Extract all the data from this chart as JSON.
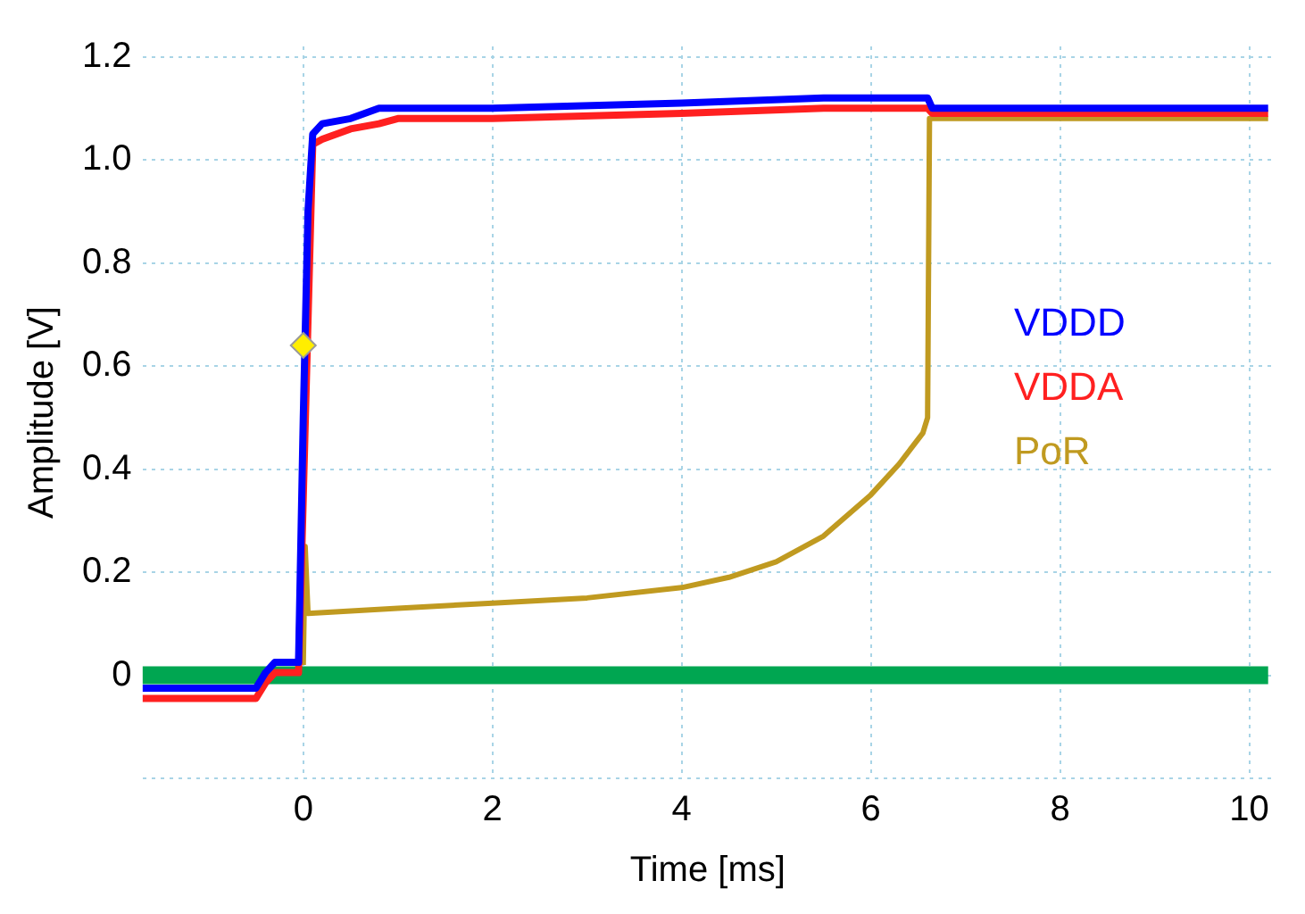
{
  "chart_data": {
    "type": "line",
    "xlabel": "Time [ms]",
    "ylabel": "Amplitude [V]",
    "xlim": [
      -1.7,
      10.25
    ],
    "ylim": [
      -0.2,
      1.22
    ],
    "xticks": [
      0,
      2,
      4,
      6,
      8,
      10
    ],
    "yticks": [
      {
        "value": -0.2,
        "label": null
      },
      0,
      0.2,
      0.4,
      0.6,
      0.8,
      {
        "value": 1,
        "label": "1.0"
      },
      1.2
    ],
    "grid": true,
    "legend": "right",
    "marker": "none",
    "line_style": "solid",
    "series": [
      {
        "color": "#00a651",
        "x": [
          -1.7,
          10.2
        ],
        "values": [
          0,
          0
        ]
      },
      {
        "name": "PoR",
        "color": "#c09a20",
        "x": [
          0,
          0.02,
          0.05,
          1,
          2,
          3,
          4,
          4.5,
          5,
          5.5,
          6,
          6.3,
          6.55,
          6.6,
          6.62,
          7,
          8,
          10.2
        ],
        "values": [
          0.02,
          0.25,
          0.12,
          0.13,
          0.14,
          0.15,
          0.17,
          0.19,
          0.22,
          0.27,
          0.35,
          0.41,
          0.47,
          0.5,
          1.08,
          1.08,
          1.08,
          1.08
        ]
      },
      {
        "name": "VDDA",
        "color": "#ff2020",
        "x": [
          -1.7,
          -0.5,
          -0.4,
          -0.3,
          -0.05,
          0,
          0.05,
          0.1,
          0.2,
          0.5,
          0.8,
          1,
          2,
          4,
          5.5,
          6.6,
          6.65,
          8,
          10.2
        ],
        "values": [
          -0.045,
          -0.045,
          -0.015,
          0.005,
          0.005,
          null,
          null,
          1.03,
          1.04,
          1.06,
          1.07,
          1.08,
          1.08,
          1.09,
          1.1,
          1.1,
          1.09,
          1.09,
          1.09
        ]
      },
      {
        "name": "VDDD",
        "color": "#0000ff",
        "x": [
          -1.7,
          -0.5,
          -0.4,
          -0.3,
          -0.05,
          0,
          0.05,
          0.1,
          0.2,
          0.5,
          0.8,
          1,
          2,
          4,
          5.5,
          6.6,
          6.65,
          8,
          10.2
        ],
        "values": [
          -0.025,
          -0.025,
          0.005,
          0.025,
          0.025,
          0.5,
          0.9,
          1.05,
          1.07,
          1.08,
          1.1,
          1.1,
          1.1,
          1.11,
          1.12,
          1.12,
          1.1,
          1.1,
          1.1
        ]
      },
      {
        "type": "scatter",
        "color": "#ffee00",
        "marker": "diamond",
        "x": [
          0
        ],
        "values": [
          0.64
        ]
      }
    ]
  }
}
